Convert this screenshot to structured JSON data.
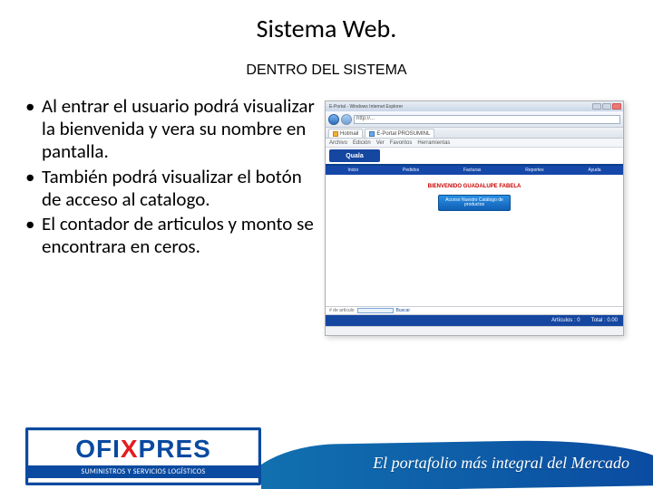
{
  "slide": {
    "title": "Sistema Web.",
    "subtitle": "DENTRO DEL SISTEMA",
    "bullets": [
      "Al entrar el usuario podrá visualizar la bienvenida y vera su nombre en pantalla.",
      "También podrá visualizar el botón de acceso al catalogo.",
      "El contador de articulos y monto se encontrara en ceros."
    ]
  },
  "screenshot": {
    "window_title": "E-Portal - Windows Internet Explorer",
    "address": "http://...",
    "tabs": {
      "first": "Hotmail",
      "second": "E-Portal PROSUMINL"
    },
    "menubar": [
      "Archivo",
      "Edición",
      "Ver",
      "Favoritos",
      "Herramientas"
    ],
    "brand": "Quala",
    "nav_items": [
      "Inicio",
      "Pedidos",
      "Facturas",
      "Reportes",
      "Ayuda"
    ],
    "welcome": "BIENVENIDO GUADALUPE FABELA",
    "catalog_btn": "Acceso Nuestro Catálogo de productos",
    "items_label": "# de artículo",
    "items_btn": "Buscar",
    "total_articulos_label": "Artículos : 0",
    "total_label": "Total : 0.00"
  },
  "footer": {
    "logo_pre": "OFI",
    "logo_x": "X",
    "logo_post": "PRES",
    "logo_sub": "SUMINISTROS Y SERVICIOS LOGÍSTICOS",
    "tagline": "El portafolio más integral del Mercado"
  },
  "colors": {
    "brand_blue": "#0a4aa0",
    "brand_red": "#e31b23",
    "nav_blue": "#1546a0",
    "welcome_red": "#c00"
  }
}
